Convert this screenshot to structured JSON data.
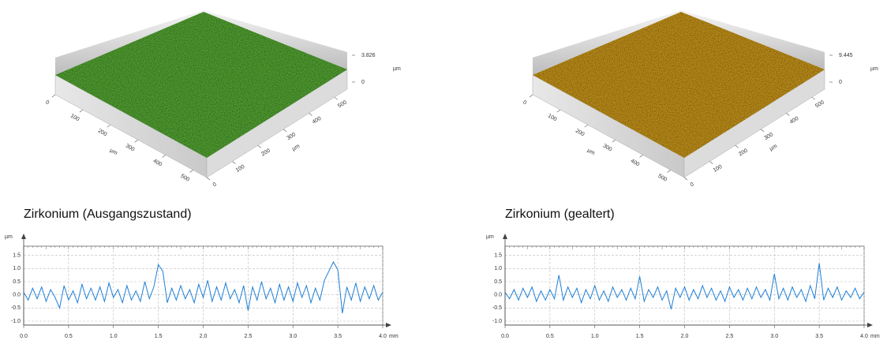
{
  "surfaces": [
    {
      "color": "#4f9a32",
      "xlim": [
        0,
        550
      ],
      "xticks": [
        0,
        100,
        200,
        300,
        400,
        500
      ],
      "x_unit": "µm",
      "ylim": [
        0,
        550
      ],
      "yticks": [
        0,
        100,
        200,
        300,
        400,
        500
      ],
      "y_unit": "µm",
      "zlim": [
        0,
        3.826
      ],
      "zticks": [
        3.826,
        0
      ],
      "z_unit": "µm"
    },
    {
      "color": "#b88a1e",
      "xlim": [
        0,
        550
      ],
      "xticks": [
        0,
        100,
        200,
        300,
        400,
        500
      ],
      "x_unit": "µm",
      "ylim": [
        0,
        550
      ],
      "yticks": [
        0,
        100,
        200,
        300,
        400,
        500
      ],
      "y_unit": "µm",
      "zlim": [
        0,
        9.445
      ],
      "zticks": [
        9.445,
        0
      ],
      "z_unit": "µm"
    }
  ],
  "chart_data": [
    {
      "type": "line",
      "title": "Zirkonium (Ausgangszustand)",
      "y_label": "µm",
      "x_label": "mm",
      "grid": true,
      "xlim": [
        0,
        4.0
      ],
      "ylim": [
        -1.15,
        1.85
      ],
      "xticks": [
        {
          "value": 0,
          "label": "0.0"
        },
        0.5,
        {
          "value": 1,
          "label": "1.0"
        },
        1.5,
        {
          "value": 2,
          "label": "2.0"
        },
        2.5,
        {
          "value": 3,
          "label": "3.0"
        },
        3.5,
        {
          "value": 4,
          "label": "4.0"
        }
      ],
      "yticks": [
        1.5,
        {
          "value": 1,
          "label": "1.0"
        },
        0.5,
        {
          "value": 0,
          "label": "0.0"
        },
        -0.5,
        {
          "value": -1,
          "label": "-1.0"
        }
      ],
      "series": [
        {
          "color": "#1e7fd6",
          "x": [
            0,
            0.05,
            0.1,
            0.15,
            0.2,
            0.25,
            0.3,
            0.35,
            0.4,
            0.45,
            0.5,
            0.55,
            0.6,
            0.65,
            0.7,
            0.75,
            0.8,
            0.85,
            0.9,
            0.95,
            1,
            1.05,
            1.1,
            1.15,
            1.2,
            1.25,
            1.3,
            1.35,
            1.4,
            1.45,
            1.5,
            1.55,
            1.6,
            1.65,
            1.7,
            1.75,
            1.8,
            1.85,
            1.9,
            1.95,
            2,
            2.05,
            2.1,
            2.15,
            2.2,
            2.25,
            2.3,
            2.35,
            2.4,
            2.45,
            2.5,
            2.55,
            2.6,
            2.65,
            2.7,
            2.75,
            2.8,
            2.85,
            2.9,
            2.95,
            3,
            3.05,
            3.1,
            3.15,
            3.2,
            3.25,
            3.3,
            3.35,
            3.4,
            3.45,
            3.5,
            3.55,
            3.6,
            3.65,
            3.7,
            3.75,
            3.8,
            3.85,
            3.9,
            3.95,
            4
          ],
          "values": [
            0.1,
            -0.2,
            0.25,
            -0.15,
            0.3,
            -0.25,
            0.2,
            -0.1,
            -0.5,
            0.35,
            -0.2,
            0.15,
            -0.3,
            0.4,
            -0.15,
            0.25,
            -0.2,
            0.3,
            -0.25,
            0.45,
            -0.1,
            0.2,
            -0.3,
            0.35,
            -0.2,
            0.15,
            -0.25,
            0.5,
            -0.15,
            0.3,
            1.15,
            0.9,
            -0.3,
            0.25,
            -0.2,
            0.35,
            -0.15,
            0.2,
            -0.3,
            0.4,
            -0.1,
            0.55,
            -0.25,
            0.3,
            -0.2,
            0.45,
            -0.15,
            0.2,
            -0.3,
            0.35,
            -0.6,
            0.3,
            -0.2,
            0.5,
            -0.15,
            0.25,
            -0.3,
            0.4,
            -0.2,
            0.3,
            -0.25,
            0.45,
            -0.1,
            0.35,
            -0.3,
            0.25,
            -0.2,
            0.55,
            0.9,
            1.25,
            0.95,
            -0.7,
            0.3,
            -0.2,
            0.45,
            -0.25,
            0.3,
            -0.15,
            0.35,
            -0.2,
            0.1
          ]
        }
      ]
    },
    {
      "type": "line",
      "title": "Zirkonium (gealtert)",
      "y_label": "µm",
      "x_label": "mm",
      "grid": true,
      "xlim": [
        0,
        4.0
      ],
      "ylim": [
        -1.15,
        1.85
      ],
      "xticks": [
        {
          "value": 0,
          "label": "0.0"
        },
        0.5,
        {
          "value": 1,
          "label": "1.0"
        },
        1.5,
        {
          "value": 2,
          "label": "2.0"
        },
        2.5,
        {
          "value": 3,
          "label": "3.0"
        },
        3.5,
        {
          "value": 4,
          "label": "4.0"
        }
      ],
      "yticks": [
        1.5,
        {
          "value": 1,
          "label": "1.0"
        },
        0.5,
        {
          "value": 0,
          "label": "0.0"
        },
        -0.5,
        {
          "value": -1,
          "label": "-1.0"
        }
      ],
      "series": [
        {
          "color": "#1e7fd6",
          "x": [
            0,
            0.05,
            0.1,
            0.15,
            0.2,
            0.25,
            0.3,
            0.35,
            0.4,
            0.45,
            0.5,
            0.55,
            0.6,
            0.65,
            0.7,
            0.75,
            0.8,
            0.85,
            0.9,
            0.95,
            1,
            1.05,
            1.1,
            1.15,
            1.2,
            1.25,
            1.3,
            1.35,
            1.4,
            1.45,
            1.5,
            1.55,
            1.6,
            1.65,
            1.7,
            1.75,
            1.8,
            1.85,
            1.9,
            1.95,
            2,
            2.05,
            2.1,
            2.15,
            2.2,
            2.25,
            2.3,
            2.35,
            2.4,
            2.45,
            2.5,
            2.55,
            2.6,
            2.65,
            2.7,
            2.75,
            2.8,
            2.85,
            2.9,
            2.95,
            3,
            3.05,
            3.1,
            3.15,
            3.2,
            3.25,
            3.3,
            3.35,
            3.4,
            3.45,
            3.5,
            3.55,
            3.6,
            3.65,
            3.7,
            3.75,
            3.8,
            3.85,
            3.9,
            3.95,
            4
          ],
          "values": [
            0.1,
            -0.15,
            0.2,
            -0.2,
            0.25,
            -0.1,
            0.3,
            -0.25,
            0.15,
            -0.2,
            0.2,
            -0.15,
            0.75,
            -0.2,
            0.3,
            -0.1,
            0.25,
            -0.3,
            0.2,
            -0.15,
            0.35,
            -0.2,
            0.15,
            -0.25,
            0.3,
            -0.1,
            0.2,
            -0.2,
            0.25,
            -0.15,
            0.7,
            -0.25,
            0.2,
            -0.1,
            0.3,
            -0.2,
            0.15,
            -0.55,
            0.25,
            -0.1,
            0.3,
            -0.2,
            0.2,
            -0.15,
            0.35,
            -0.1,
            0.25,
            -0.2,
            0.15,
            -0.25,
            0.3,
            -0.1,
            0.2,
            -0.2,
            0.25,
            -0.15,
            0.3,
            -0.1,
            0.2,
            -0.2,
            0.8,
            -0.15,
            0.25,
            -0.2,
            0.3,
            -0.1,
            0.2,
            -0.25,
            0.35,
            -0.15,
            1.2,
            -0.2,
            0.25,
            -0.1,
            0.3,
            -0.2,
            0.15,
            -0.1,
            0.25,
            -0.15,
            0.1
          ]
        }
      ]
    }
  ]
}
